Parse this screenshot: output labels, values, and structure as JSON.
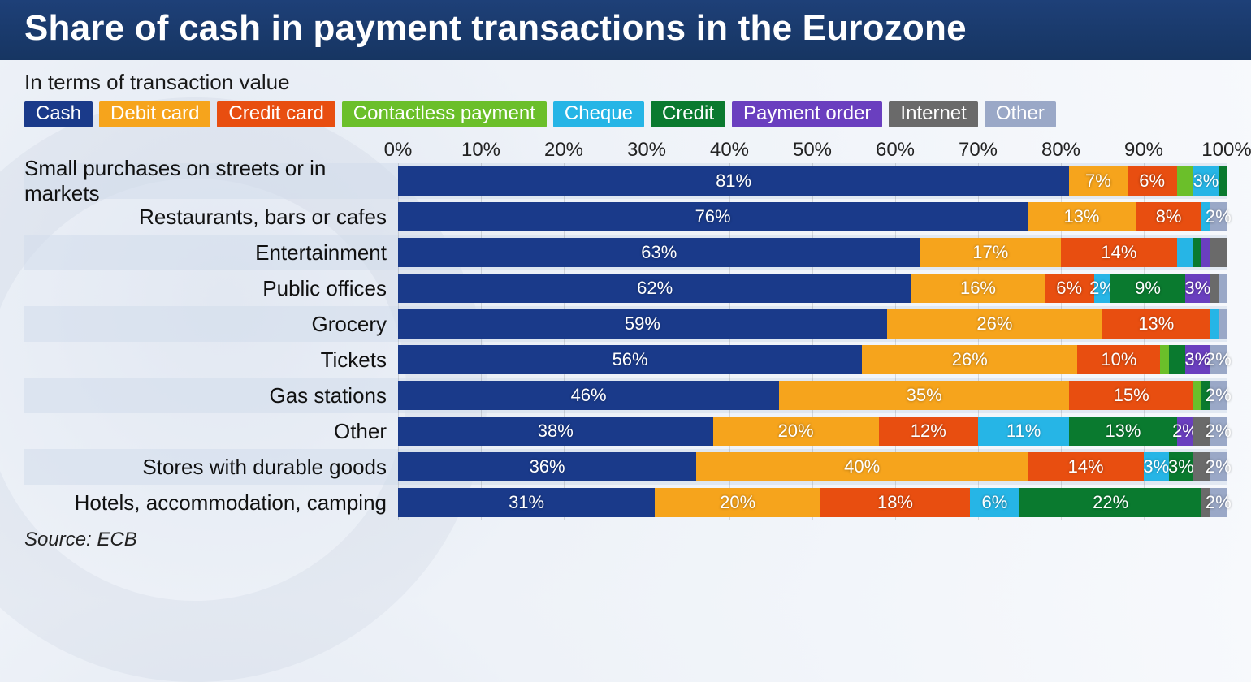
{
  "title": "Share of cash in payment transactions in the Eurozone",
  "subtitle": "In terms of transaction value",
  "source_label": "Source: ECB",
  "title_bg": "#1a3a6e",
  "title_color": "#ffffff",
  "axis": {
    "min": 0,
    "max": 100,
    "step": 10,
    "suffix": "%"
  },
  "grid_color": "rgba(0,0,0,.12)",
  "row_stripe_color": "rgba(210,220,235,.55)",
  "font_family": "Segoe UI, Helvetica Neue, Arial, sans-serif",
  "label_threshold": 2,
  "series": [
    {
      "key": "cash",
      "label": "Cash",
      "color": "#1a3a8a"
    },
    {
      "key": "debit",
      "label": "Debit card",
      "color": "#f6a41c"
    },
    {
      "key": "credit_card",
      "label": "Credit card",
      "color": "#e84e10"
    },
    {
      "key": "contactless",
      "label": "Contactless payment",
      "color": "#6bbf2a"
    },
    {
      "key": "cheque",
      "label": "Cheque",
      "color": "#26b5e6"
    },
    {
      "key": "credit",
      "label": "Credit",
      "color": "#0a7a2f"
    },
    {
      "key": "pay_order",
      "label": "Payment order",
      "color": "#6a3fbf"
    },
    {
      "key": "internet",
      "label": "Internet",
      "color": "#6a6a6a"
    },
    {
      "key": "other",
      "label": "Other",
      "color": "#9aa8c7"
    }
  ],
  "categories": [
    {
      "label": "Small purchases on streets or in markets",
      "values": {
        "cash": 81,
        "debit": 7,
        "credit_card": 6,
        "contactless": 2,
        "cheque": 3,
        "credit": 1,
        "pay_order": 0,
        "internet": 0,
        "other": 0
      },
      "show": {
        "cash": "81%",
        "debit": "7%",
        "credit_card": "6%",
        "cheque": "3%"
      }
    },
    {
      "label": "Restaurants, bars or cafes",
      "values": {
        "cash": 76,
        "debit": 13,
        "credit_card": 8,
        "contactless": 0,
        "cheque": 1,
        "credit": 0,
        "pay_order": 0,
        "internet": 0,
        "other": 2
      },
      "show": {
        "cash": "76%",
        "debit": "13%",
        "credit_card": "8%",
        "other": "2%"
      }
    },
    {
      "label": "Entertainment",
      "values": {
        "cash": 63,
        "debit": 17,
        "credit_card": 14,
        "contactless": 0,
        "cheque": 2,
        "credit": 1,
        "pay_order": 1,
        "internet": 2,
        "other": 0
      },
      "show": {
        "cash": "63%",
        "debit": "17%",
        "credit_card": "14%"
      }
    },
    {
      "label": "Public offices",
      "values": {
        "cash": 62,
        "debit": 16,
        "credit_card": 6,
        "contactless": 0,
        "cheque": 2,
        "credit": 9,
        "pay_order": 3,
        "internet": 1,
        "other": 1
      },
      "show": {
        "cash": "62%",
        "debit": "16%",
        "credit_card": "6%",
        "cheque": "2%",
        "credit": "9%",
        "pay_order": "3%"
      }
    },
    {
      "label": "Grocery",
      "values": {
        "cash": 59,
        "debit": 26,
        "credit_card": 13,
        "contactless": 0,
        "cheque": 1,
        "credit": 0,
        "pay_order": 0,
        "internet": 0,
        "other": 1
      },
      "show": {
        "cash": "59%",
        "debit": "26%",
        "credit_card": "13%"
      }
    },
    {
      "label": "Tickets",
      "values": {
        "cash": 56,
        "debit": 26,
        "credit_card": 10,
        "contactless": 1,
        "cheque": 0,
        "credit": 2,
        "pay_order": 3,
        "internet": 0,
        "other": 2
      },
      "show": {
        "cash": "56%",
        "debit": "26%",
        "credit_card": "10%",
        "pay_order": "3%",
        "other": "2%"
      }
    },
    {
      "label": "Gas stations",
      "values": {
        "cash": 46,
        "debit": 35,
        "credit_card": 15,
        "contactless": 1,
        "cheque": 0,
        "credit": 1,
        "pay_order": 0,
        "internet": 0,
        "other": 2
      },
      "show": {
        "cash": "46%",
        "debit": "35%",
        "credit_card": "15%",
        "other": "2%"
      }
    },
    {
      "label": "Other",
      "values": {
        "cash": 38,
        "debit": 20,
        "credit_card": 12,
        "contactless": 0,
        "cheque": 11,
        "credit": 13,
        "pay_order": 2,
        "internet": 2,
        "other": 2
      },
      "show": {
        "cash": "38%",
        "debit": "20%",
        "credit_card": "12%",
        "cheque": "11%",
        "credit": "13%",
        "pay_order": "2%",
        "other": "2%"
      }
    },
    {
      "label": "Stores with durable goods",
      "values": {
        "cash": 36,
        "debit": 40,
        "credit_card": 14,
        "contactless": 0,
        "cheque": 3,
        "credit": 3,
        "pay_order": 0,
        "internet": 2,
        "other": 2
      },
      "show": {
        "cash": "36%",
        "debit": "40%",
        "credit_card": "14%",
        "cheque": "3%",
        "credit": "3%",
        "other": "2%"
      }
    },
    {
      "label": "Hotels, accommodation, camping",
      "values": {
        "cash": 31,
        "debit": 20,
        "credit_card": 18,
        "contactless": 0,
        "cheque": 6,
        "credit": 22,
        "pay_order": 0,
        "internet": 1,
        "other": 2
      },
      "show": {
        "cash": "31%",
        "debit": "20%",
        "credit_card": "18%",
        "cheque": "6%",
        "credit": "22%",
        "other": "2%"
      }
    }
  ]
}
